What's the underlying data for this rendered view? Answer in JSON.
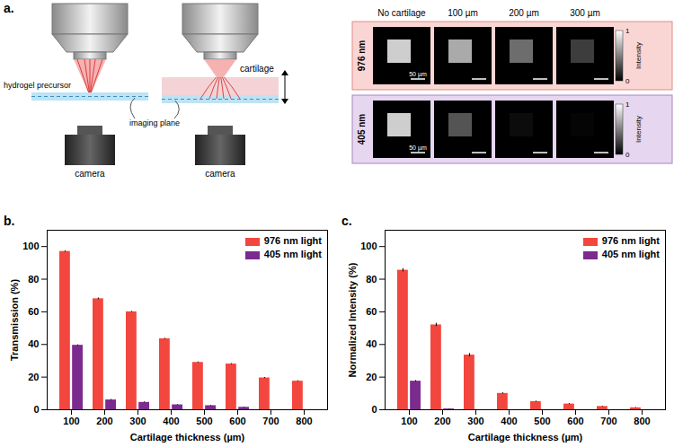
{
  "chart_data": [
    {
      "type": "bar",
      "title": "b.",
      "x_label": "Cartilage thickness (µm)",
      "y_label": "Transmission (%)",
      "categories": [
        100,
        200,
        300,
        400,
        500,
        600,
        700,
        800
      ],
      "ylim": [
        0,
        110
      ],
      "yticks": [
        0,
        20,
        40,
        60,
        80,
        100
      ],
      "legend": "upper right",
      "series": [
        {
          "name": "976 nm light",
          "color": "#f2463e",
          "values": [
            97,
            68,
            60,
            43.5,
            29,
            28,
            19.5,
            17.5
          ],
          "errors": [
            0.4,
            0.5,
            0.3,
            0.3,
            0.3,
            0.3,
            0.3,
            0.3
          ]
        },
        {
          "name": "405 nm light",
          "color": "#7b2a8e",
          "values": [
            39.5,
            6,
            4.5,
            3,
            2.5,
            1.5,
            0,
            0
          ],
          "errors": [
            0.3,
            0.3,
            0.3,
            0.2,
            0.2,
            0.2,
            0,
            0
          ]
        }
      ]
    },
    {
      "type": "bar",
      "title": "c.",
      "x_label": "Cartilage thickness (µm)",
      "y_label": "Normalized Intensity (%)",
      "categories": [
        100,
        200,
        300,
        400,
        500,
        600,
        700,
        800
      ],
      "ylim": [
        0,
        110
      ],
      "yticks": [
        0,
        20,
        40,
        60,
        80,
        100
      ],
      "legend": "upper right",
      "series": [
        {
          "name": "976 nm light",
          "color": "#f2463e",
          "values": [
            85.5,
            52,
            33.5,
            10,
            5,
            3.5,
            2,
            1.2
          ],
          "errors": [
            1,
            1,
            1,
            0.4,
            0.3,
            0.3,
            0.2,
            0.2
          ]
        },
        {
          "name": "405 nm light",
          "color": "#7b2a8e",
          "values": [
            17.5,
            0.5,
            0,
            0,
            0,
            0,
            0,
            0
          ],
          "errors": [
            0.4,
            0.1,
            0,
            0,
            0,
            0,
            0,
            0
          ]
        }
      ]
    }
  ],
  "diagram": {
    "title": "a.",
    "schematic": {
      "hydrogel": "hydrogel precursor",
      "cartilage": "cartilage",
      "camera": "camera",
      "imaging_plane": "imaging plane"
    },
    "images": {
      "columns": [
        "No cartilage",
        "100 µm",
        "200 µm",
        "300 µm"
      ],
      "scale_bar": "50 µm",
      "rows": [
        {
          "label": "976 nm",
          "color": "#f9d6d4",
          "intensity": [
            0.85,
            0.7,
            0.45,
            0.25
          ]
        },
        {
          "label": "405 nm",
          "color": "#e6d6ef",
          "intensity": [
            0.85,
            0.35,
            0.05,
            0.02
          ]
        }
      ],
      "colorbar": {
        "label": "Intensity",
        "range": [
          0,
          1
        ],
        "ticks": [
          0,
          1
        ]
      }
    }
  }
}
